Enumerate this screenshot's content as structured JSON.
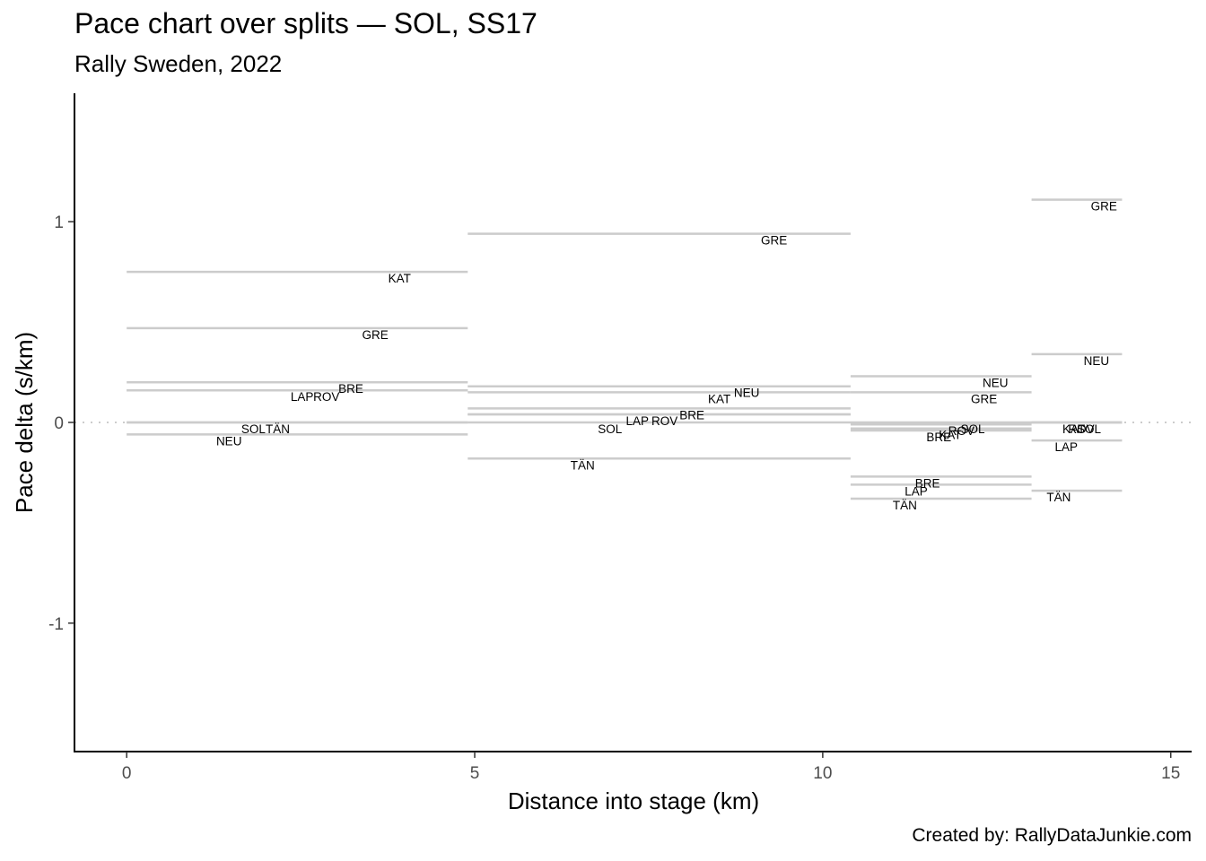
{
  "chart_data": {
    "type": "line",
    "title": "Pace chart over splits — SOL, SS17",
    "subtitle": "Rally Sweden, 2022",
    "xlabel": "Distance into stage (km)",
    "ylabel": "Pace delta (s/km)",
    "caption": "Created by: RallyDataJunkie.com",
    "xlim": [
      -0.75,
      15.3
    ],
    "ylim": [
      1.64,
      -1.64
    ],
    "y_reversed": true,
    "xticks": [
      0,
      5,
      10,
      15
    ],
    "yticks": [
      -1,
      0,
      1
    ],
    "ytick_labels": [
      "-1",
      "0",
      "1"
    ],
    "grid": false,
    "reference_line": {
      "y": 0,
      "style": "dotted",
      "color": "#cccccc"
    },
    "segment_color": "#cccccc",
    "splits": [
      {
        "x_start": 0,
        "x_end": 4.9,
        "drivers": [
          {
            "name": "NEU",
            "pace_delta": -0.06
          },
          {
            "name": "SOL",
            "pace_delta": 0.0
          },
          {
            "name": "TÄN",
            "pace_delta": 0.0
          },
          {
            "name": "LAP",
            "pace_delta": 0.16
          },
          {
            "name": "ROV",
            "pace_delta": 0.16
          },
          {
            "name": "BRE",
            "pace_delta": 0.2
          },
          {
            "name": "GRE",
            "pace_delta": 0.47
          },
          {
            "name": "KAT",
            "pace_delta": 0.75
          }
        ]
      },
      {
        "x_start": 4.9,
        "x_end": 10.4,
        "drivers": [
          {
            "name": "TÄN",
            "pace_delta": -0.18
          },
          {
            "name": "SOL",
            "pace_delta": 0.0
          },
          {
            "name": "LAP",
            "pace_delta": 0.04
          },
          {
            "name": "ROV",
            "pace_delta": 0.04
          },
          {
            "name": "BRE",
            "pace_delta": 0.07
          },
          {
            "name": "KAT",
            "pace_delta": 0.15
          },
          {
            "name": "NEU",
            "pace_delta": 0.18
          },
          {
            "name": "GRE",
            "pace_delta": 0.94
          }
        ]
      },
      {
        "x_start": 10.4,
        "x_end": 13.0,
        "drivers": [
          {
            "name": "TÄN",
            "pace_delta": -0.38
          },
          {
            "name": "LAP",
            "pace_delta": -0.31
          },
          {
            "name": "BRE",
            "pace_delta": -0.27
          },
          {
            "name": "BRE",
            "pace_delta": -0.04
          },
          {
            "name": "KAT",
            "pace_delta": -0.03
          },
          {
            "name": "ROV",
            "pace_delta": -0.01
          },
          {
            "name": "SOL",
            "pace_delta": 0.0
          },
          {
            "name": "GRE",
            "pace_delta": 0.15
          },
          {
            "name": "NEU",
            "pace_delta": 0.23
          }
        ]
      },
      {
        "x_start": 13.0,
        "x_end": 14.3,
        "drivers": [
          {
            "name": "TÄN",
            "pace_delta": -0.34
          },
          {
            "name": "LAP",
            "pace_delta": -0.09
          },
          {
            "name": "KAT",
            "pace_delta": 0.0
          },
          {
            "name": "ROV",
            "pace_delta": 0.0
          },
          {
            "name": "SOL",
            "pace_delta": 0.0
          },
          {
            "name": "NEU",
            "pace_delta": 0.34
          },
          {
            "name": "GRE",
            "pace_delta": 1.11
          }
        ]
      }
    ]
  }
}
